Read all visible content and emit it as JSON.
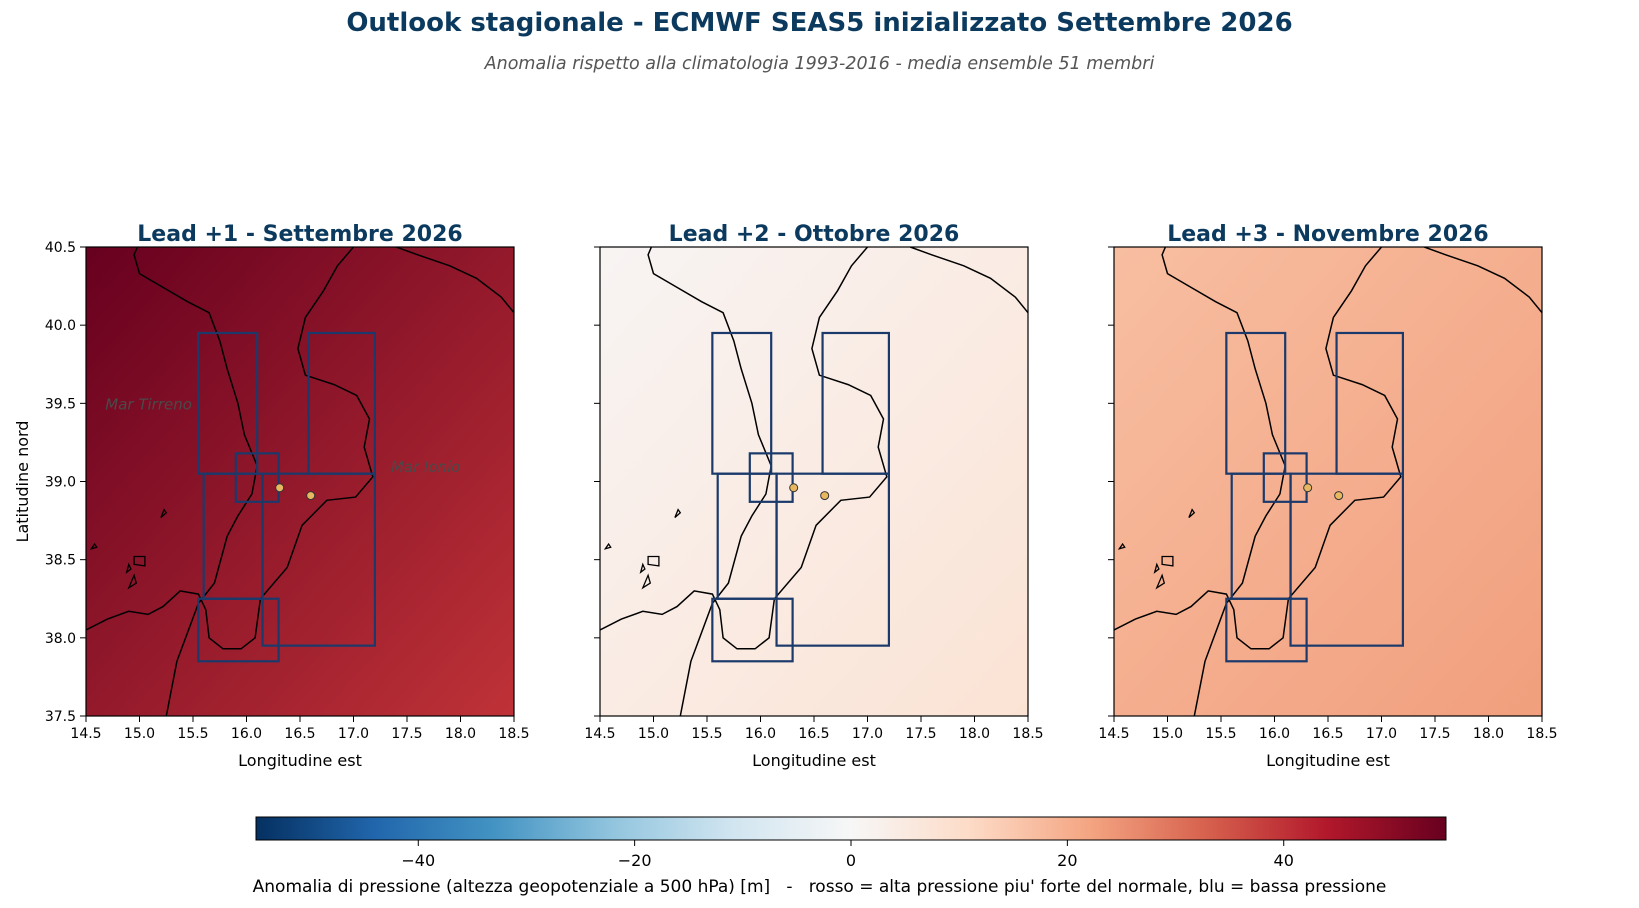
{
  "title": "Outlook stagionale - ECMWF SEAS5 inizializzato Settembre 2026",
  "subtitle": "Anomalia rispetto alla climatologia 1993-2016 - media ensemble 51 membri",
  "colorbar": {
    "label": "Anomalia di pressione (altezza geopotenziale a 500 hPa) [m]   -   rosso = alta pressione piu' forte del normale, blu = bassa pressione",
    "range": [
      -55,
      55
    ],
    "ticks": [
      -40,
      -20,
      0,
      20,
      40
    ],
    "tick_labels": [
      "−40",
      "−20",
      "0",
      "20",
      "40"
    ],
    "colormap": "RdBu_r",
    "stops": [
      "#053061",
      "#2166ac",
      "#4393c3",
      "#92c5de",
      "#d1e5f0",
      "#f7f7f7",
      "#fddbc7",
      "#f4a582",
      "#d6604d",
      "#b2182b",
      "#67001f"
    ]
  },
  "axes": {
    "xlabel": "Longitudine est",
    "ylabel": "Latitudine nord",
    "xlim": [
      14.5,
      18.5
    ],
    "ylim": [
      37.5,
      40.5
    ],
    "xticks": [
      14.5,
      15.0,
      15.5,
      16.0,
      16.5,
      17.0,
      17.5,
      18.0,
      18.5
    ],
    "xtick_labels": [
      "14.5",
      "15.0",
      "15.5",
      "16.0",
      "16.5",
      "17.0",
      "17.5",
      "18.0",
      "18.5"
    ],
    "yticks": [
      37.5,
      38.0,
      38.5,
      39.0,
      39.5,
      40.0,
      40.5
    ],
    "ytick_labels": [
      "37.5",
      "38.0",
      "38.5",
      "39.0",
      "39.5",
      "40.0",
      "40.5"
    ]
  },
  "panels": [
    {
      "title": "Lead +1 - Settembre 2026",
      "anomaly_nw": 55,
      "anomaly_se": 40
    },
    {
      "title": "Lead +2 - Ottobre 2026",
      "anomaly_nw": 1,
      "anomaly_se": 8
    },
    {
      "title": "Lead +3 - Novembre 2026",
      "anomaly_nw": 17,
      "anomaly_se": 23
    }
  ],
  "sea_labels": [
    {
      "text": "Mar Tirreno",
      "lon": 14.68,
      "lat": 39.5
    },
    {
      "text": "Mar Ionio",
      "lon": 17.35,
      "lat": 39.1
    }
  ],
  "regions": [
    {
      "lon": [
        15.55,
        16.1
      ],
      "lat": [
        39.05,
        39.95
      ]
    },
    {
      "lon": [
        16.58,
        17.2
      ],
      "lat": [
        39.05,
        39.95
      ]
    },
    {
      "lon": [
        15.6,
        16.15
      ],
      "lat": [
        38.25,
        39.05
      ]
    },
    {
      "lon": [
        16.15,
        17.2
      ],
      "lat": [
        37.95,
        39.05
      ]
    },
    {
      "lon": [
        15.9,
        16.3
      ],
      "lat": [
        38.87,
        39.18
      ]
    },
    {
      "lon": [
        15.55,
        16.3
      ],
      "lat": [
        37.85,
        38.25
      ]
    }
  ],
  "points": [
    {
      "lon": 16.31,
      "lat": 38.96
    },
    {
      "lon": 16.6,
      "lat": 38.91
    }
  ],
  "colors": {
    "title": "#0b3a5e",
    "region_outline": "#1b3a6b",
    "point_fill": "#e8b860",
    "coastline": "#000000",
    "sea_label": "#4a4a4a"
  }
}
